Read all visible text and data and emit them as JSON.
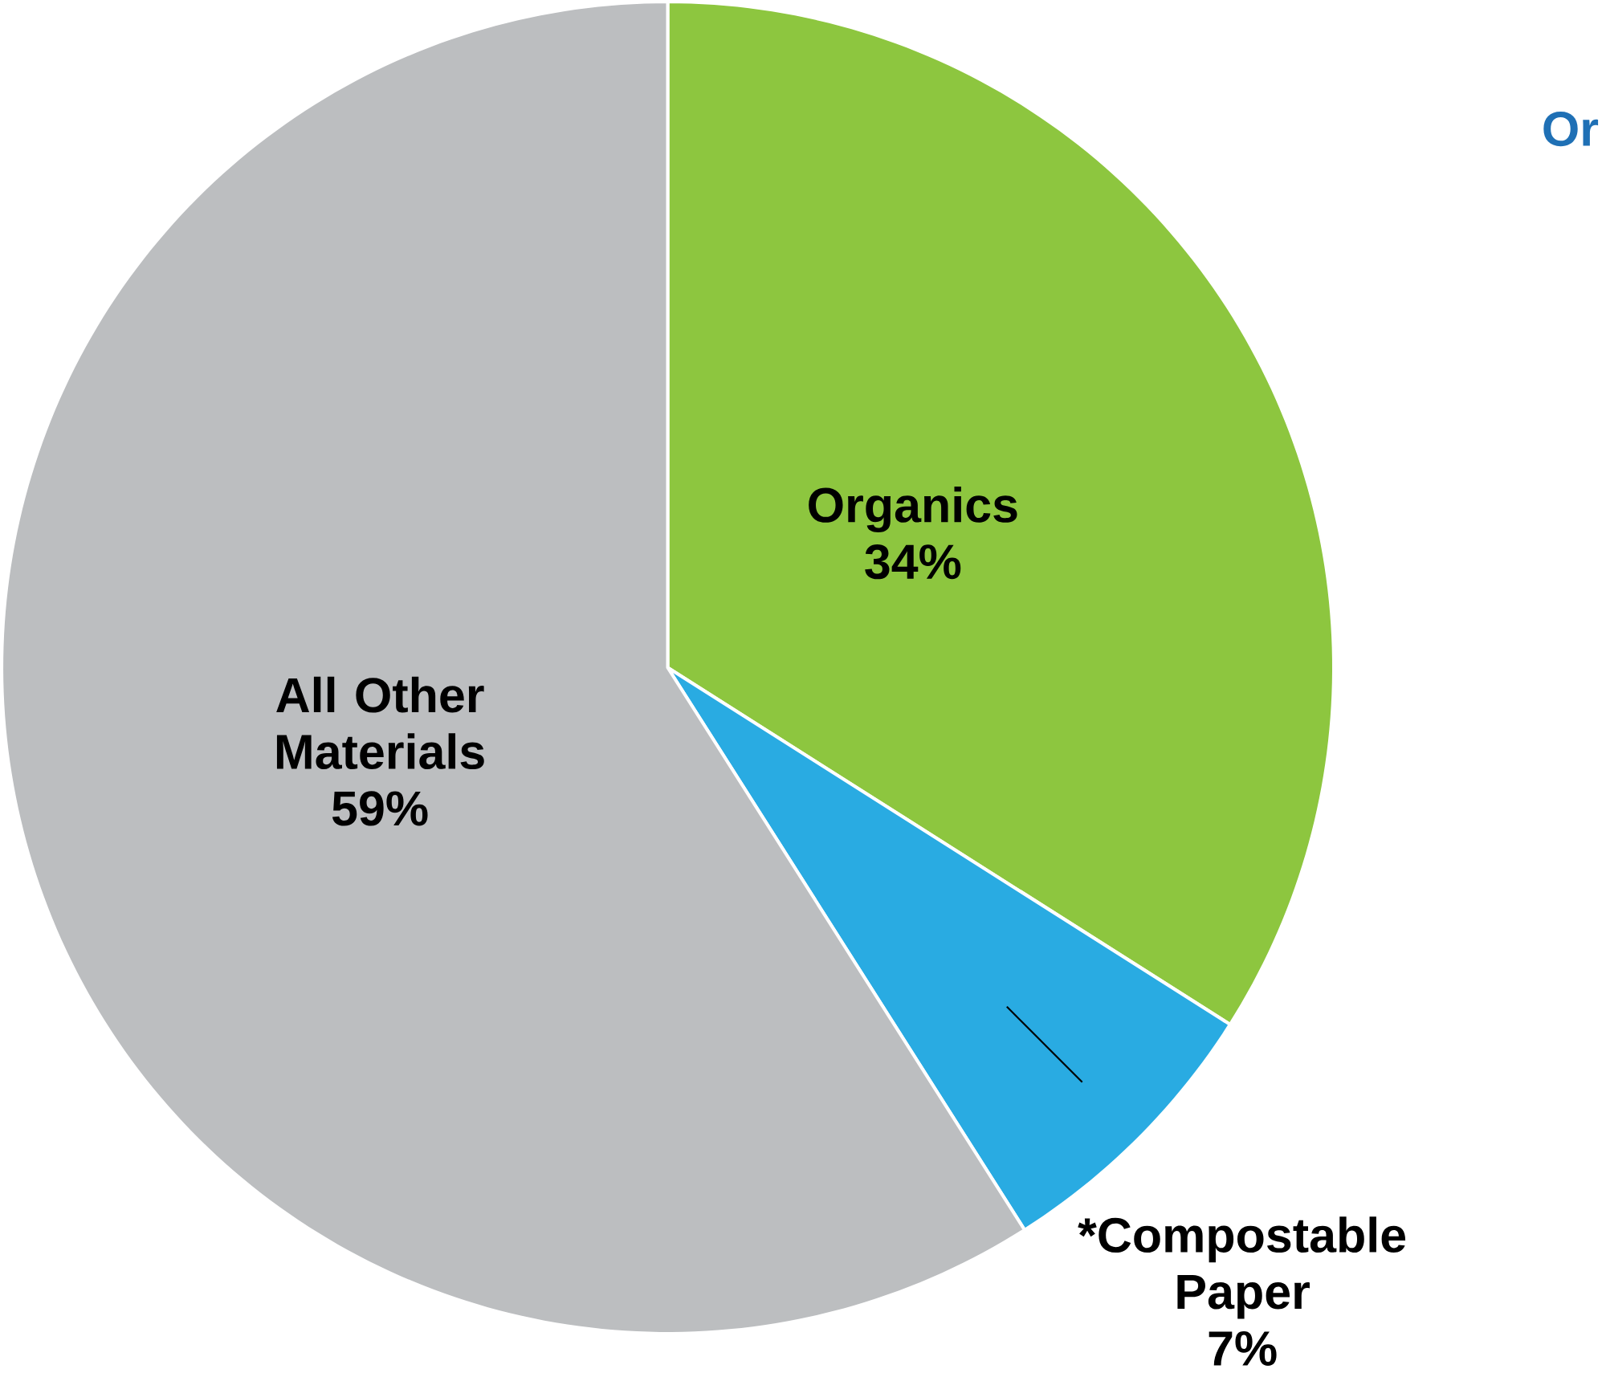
{
  "chart_data": {
    "type": "pie",
    "title": "Or",
    "categories": [
      "Organics",
      "*Compostable Paper",
      "All Other Materials"
    ],
    "values": [
      34,
      7,
      59
    ],
    "value_labels": [
      "34%",
      "7%",
      "59%"
    ],
    "colors": [
      "#8dc63f",
      "#29abe2",
      "#bcbec0"
    ]
  }
}
